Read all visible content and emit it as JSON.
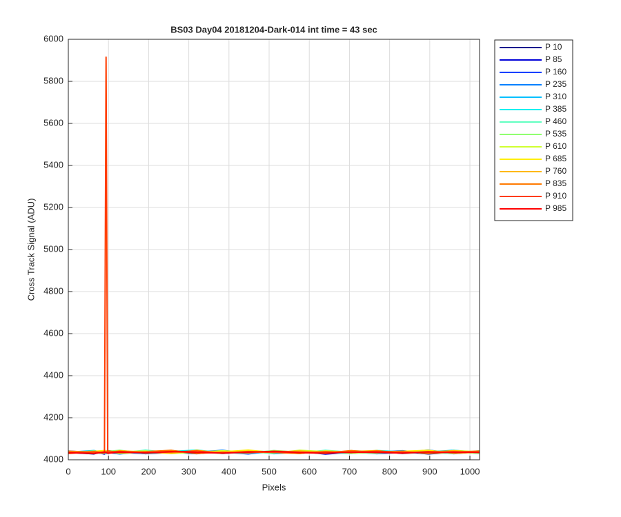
{
  "chart_data": {
    "type": "line",
    "title": "BS03 Day04 20181204-Dark-014 int time = 43 sec",
    "x_label": "Pixels",
    "y_label": "Cross Track Signal (ADU)",
    "x": [
      0,
      64,
      90,
      94,
      98,
      128,
      192,
      256,
      320,
      384,
      448,
      512,
      576,
      640,
      704,
      768,
      832,
      896,
      960,
      1024
    ],
    "xlim": [
      0,
      1024
    ],
    "ylim": [
      4000,
      6000
    ],
    "xticks": [
      0,
      100,
      200,
      300,
      400,
      500,
      600,
      700,
      800,
      900,
      1000
    ],
    "yticks": [
      4000,
      4200,
      4400,
      4600,
      4800,
      5000,
      5200,
      5400,
      5600,
      5800,
      6000
    ],
    "grid": true,
    "legend": "outside-right",
    "series": [
      {
        "name": "P 10",
        "color": "#00008f",
        "values": [
          4035,
          4028,
          4040,
          4032,
          4038,
          4030,
          4042,
          4036,
          4029,
          4041,
          4033,
          4037,
          4030,
          4044,
          4035,
          4031,
          4039,
          4028,
          4036,
          4033
        ]
      },
      {
        "name": "P 85",
        "color": "#0000d8",
        "values": [
          4031,
          4039,
          4027,
          4036,
          4033,
          4041,
          4029,
          4035,
          4043,
          4030,
          4038,
          4032,
          4040,
          4027,
          4036,
          4042,
          4030,
          4037,
          4029,
          4039
        ]
      },
      {
        "name": "P 160",
        "color": "#0040ff",
        "values": [
          4038,
          4032,
          4036,
          4029,
          4041,
          4035,
          4030,
          4044,
          4033,
          4037,
          4028,
          4042,
          4034,
          4039,
          4031,
          4036,
          4043,
          4032,
          4040,
          4030
        ]
      },
      {
        "name": "P 235",
        "color": "#0080ff",
        "values": [
          4042,
          4034,
          4030,
          4039,
          4035,
          4028,
          4040,
          4032,
          4037,
          4045,
          4031,
          4036,
          4041,
          4033,
          4038,
          4029,
          4035,
          4046,
          4032,
          4040
        ]
      },
      {
        "name": "P 310",
        "color": "#00c0ff",
        "values": [
          4036,
          4044,
          4033,
          4038,
          4030,
          4042,
          4035,
          4039,
          4031,
          4036,
          4043,
          4029,
          4037,
          4041,
          4034,
          4040,
          4032,
          4038,
          4045,
          4035
        ]
      },
      {
        "name": "P 385",
        "color": "#10f0f0",
        "values": [
          4033,
          4037,
          4041,
          4030,
          4044,
          4036,
          4032,
          4040,
          4046,
          4034,
          4039,
          4031,
          4043,
          4035,
          4030,
          4044,
          4038,
          4033,
          4041,
          4037
        ]
      },
      {
        "name": "P 460",
        "color": "#60ffc0",
        "values": [
          4040,
          4031,
          4035,
          4043,
          4037,
          4032,
          4046,
          4034,
          4039,
          4030,
          4042,
          4038,
          4033,
          4045,
          4036,
          4031,
          4041,
          4035,
          4030,
          4043
        ]
      },
      {
        "name": "P 535",
        "color": "#90ff70",
        "values": [
          4034,
          4042,
          4038,
          4033,
          4040,
          4045,
          4031,
          4037,
          4041,
          4035,
          4032,
          4044,
          4036,
          4030,
          4043,
          4038,
          4034,
          4042,
          4037,
          4031
        ]
      },
      {
        "name": "P 610",
        "color": "#d0ff30",
        "values": [
          4039,
          4035,
          4031,
          4044,
          4032,
          4038,
          4042,
          4030,
          4036,
          4043,
          4037,
          4033,
          4045,
          4039,
          4032,
          4036,
          4041,
          4030,
          4044,
          4038
        ]
      },
      {
        "name": "P 685",
        "color": "#ffee00",
        "values": [
          4032,
          4040,
          4044,
          4036,
          4039,
          4031,
          4037,
          4043,
          4034,
          4038,
          4046,
          4035,
          4030,
          4042,
          4037,
          4033,
          4040,
          4045,
          4031,
          4036
        ]
      },
      {
        "name": "P 760",
        "color": "#ffb800",
        "values": [
          4037,
          4033,
          4039,
          4041,
          4034,
          4043,
          4036,
          4031,
          4045,
          4032,
          4040,
          4036,
          4042,
          4034,
          4039,
          4044,
          4031,
          4037,
          4043,
          4034
        ]
      },
      {
        "name": "P 835",
        "color": "#ff7a00",
        "values": [
          4041,
          4036,
          4032,
          4038,
          4043,
          4034,
          4039,
          4045,
          4030,
          4037,
          4033,
          4041,
          4038,
          4032,
          4044,
          4035,
          4039,
          4031,
          4036,
          4042
        ]
      },
      {
        "name": "P 910",
        "color": "#ff3c00",
        "values": [
          4030,
          4038,
          4034,
          5915,
          4036,
          4040,
          4033,
          4037,
          4042,
          4031,
          4039,
          4035,
          4032,
          4038,
          4034,
          4041,
          4036,
          4033,
          4039,
          4035
        ]
      },
      {
        "name": "P 985",
        "color": "#ff0000",
        "values": [
          4034,
          4030,
          4037,
          4035,
          4031,
          4036,
          4033,
          4039,
          4035,
          4032,
          4036,
          4040,
          4034,
          4031,
          4037,
          4035,
          4032,
          4038,
          4034,
          4036
        ]
      }
    ]
  }
}
